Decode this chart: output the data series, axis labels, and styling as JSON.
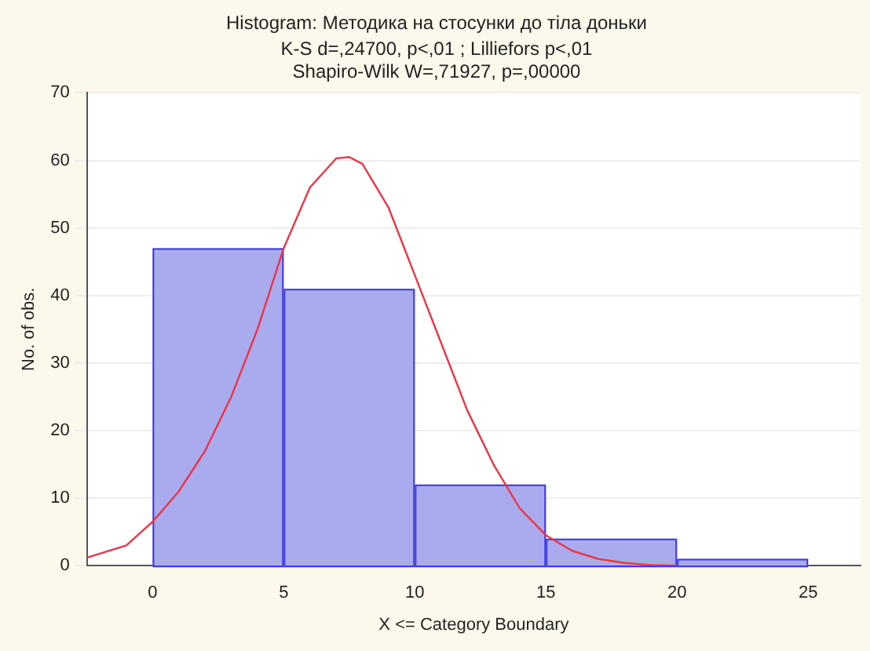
{
  "chart_data": {
    "type": "histogram",
    "title": "Histogram: Методика на стосунки до тіла доньки",
    "subtitle": "K-S d=,24700, p<,01 ; Lilliefors p<,01\nShapiro-Wilk W=,71927, p=,00000",
    "xlabel": "X <= Category Boundary",
    "ylabel": "No. of obs.",
    "bins": [
      0,
      5,
      10,
      15,
      20,
      25
    ],
    "values": [
      47,
      41,
      12,
      4,
      1
    ],
    "color": "#aaaaee",
    "series": [
      {
        "type": "line",
        "color": "#ee3344",
        "x": [
          -2.5,
          -1,
          0,
          1,
          2,
          3,
          4,
          5,
          6,
          7,
          7.5,
          8,
          9,
          10,
          11,
          12,
          13,
          14,
          15,
          16,
          17,
          18,
          19,
          20
        ],
        "values": [
          1.2,
          3,
          6.5,
          11,
          17,
          25,
          35,
          47,
          56,
          60.3,
          60.5,
          59.5,
          53,
          43,
          33,
          23,
          15,
          8.5,
          4.5,
          2.2,
          1,
          0.4,
          0.1,
          0
        ]
      }
    ],
    "xlim": [
      -2.5,
      27
    ],
    "ylim": [
      0,
      70
    ],
    "xticks": [
      0,
      5,
      10,
      15,
      20,
      25
    ],
    "yticks": [
      0,
      10,
      20,
      30,
      40,
      50,
      60,
      70
    ],
    "grid": "y",
    "legend": false,
    "marker": "none",
    "line_style": "solid"
  }
}
